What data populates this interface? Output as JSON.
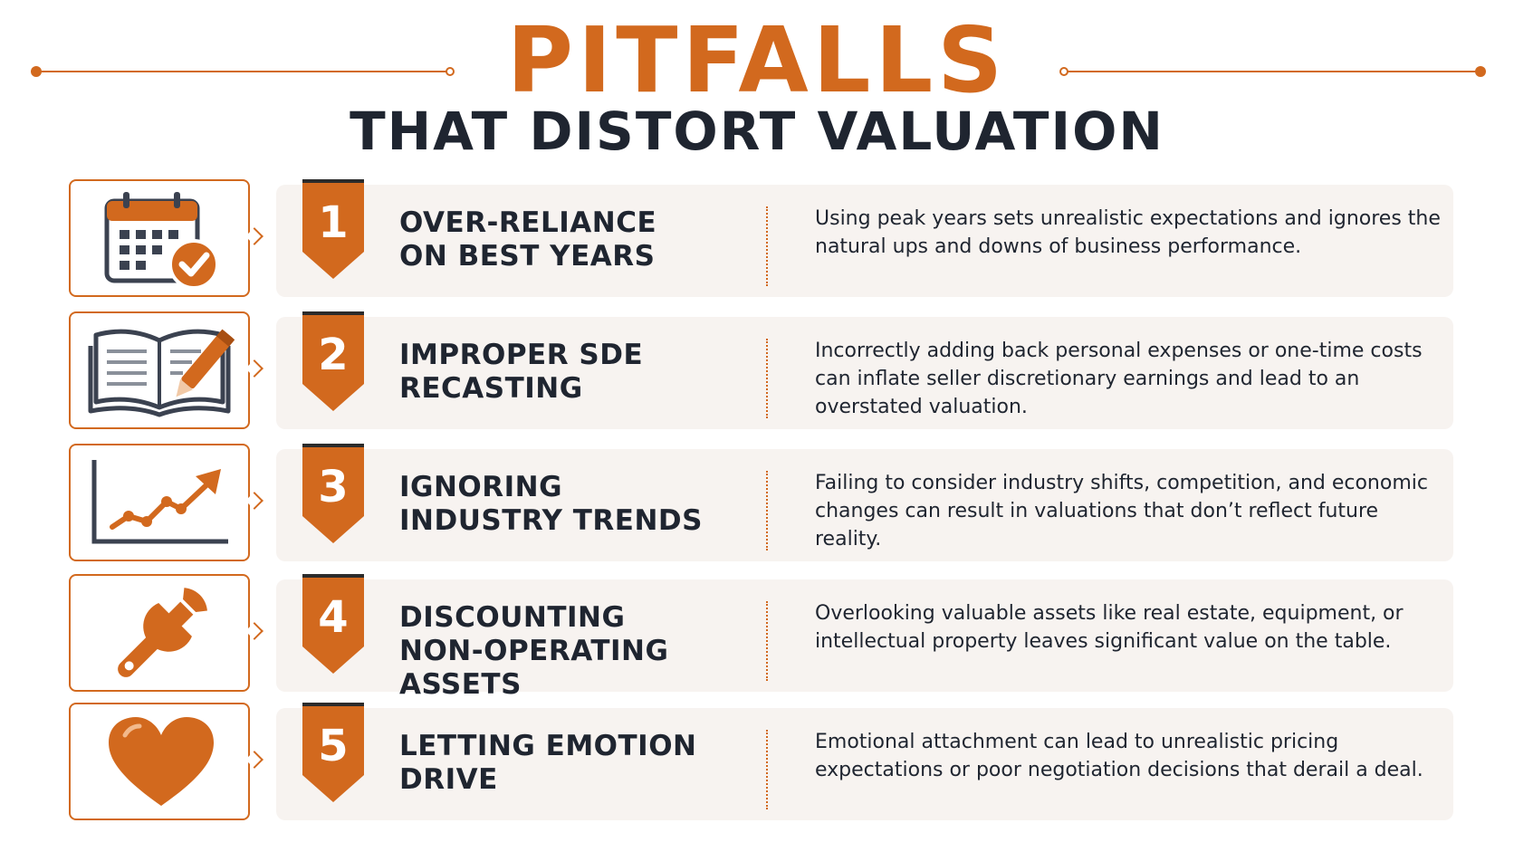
{
  "title": "PITFALLS",
  "subtitle": "THAT DISTORT VALUATION",
  "colors": {
    "accent": "#d2691e",
    "dark": "#1f2530",
    "card": "#f7f3f0"
  },
  "items": [
    {
      "number": "1",
      "icon": "calendar-check-icon",
      "heading": "OVER-RELIANCE\nON BEST YEARS",
      "description": "Using peak years sets unrealistic expectations and ignores the natural ups and downs of business performance."
    },
    {
      "number": "2",
      "icon": "open-book-pencil-icon",
      "heading": "IMPROPER SDE\nRECASTING",
      "description": "Incorrectly adding back personal expenses or one-time costs can inflate seller discretionary earnings and lead to an overstated valuation."
    },
    {
      "number": "3",
      "icon": "trend-chart-icon",
      "heading": "IGNORING\nINDUSTRY TRENDS",
      "description": "Failing to consider industry shifts, competition, and economic changes can result in valuations that don’t reflect future reality."
    },
    {
      "number": "4",
      "icon": "wrench-icon",
      "heading": "DISCOUNTING\nNON-OPERATING ASSETS",
      "description": "Overlooking valuable assets like real estate, equipment, or intellectual property leaves significant value on the table."
    },
    {
      "number": "5",
      "icon": "heart-icon",
      "heading": "LETTING EMOTION\nDRIVE",
      "description": "Emotional attachment can lead to unrealistic pricing expectations or poor negotiation decisions that derail a deal."
    }
  ]
}
